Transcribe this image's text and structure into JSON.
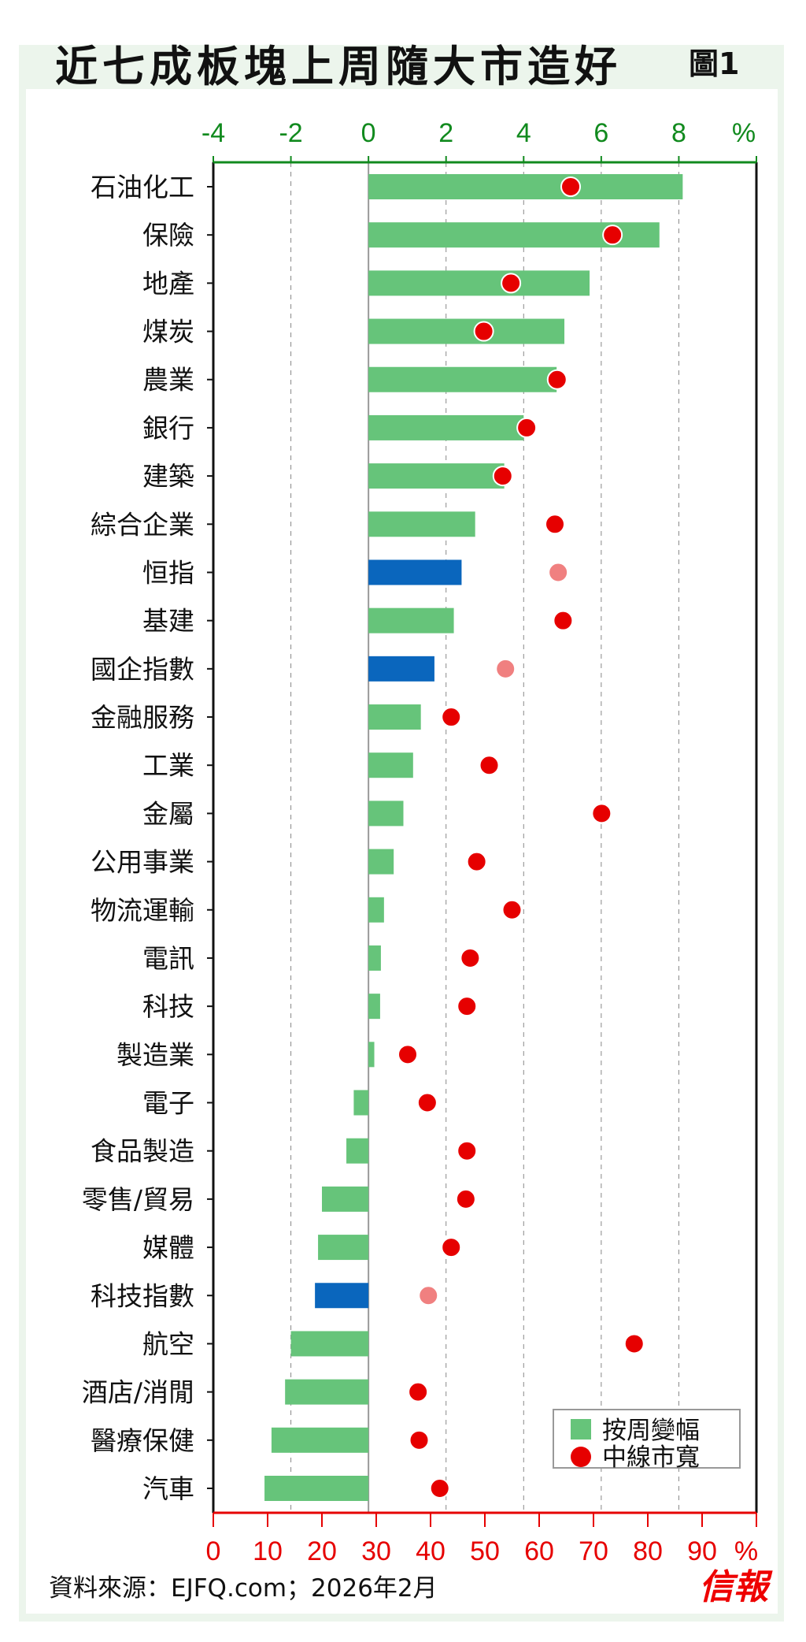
{
  "title": "近七成板塊上周隨大市造好",
  "figure_label": "圖1",
  "source": "資料來源：EJFQ.com；2026年2月",
  "logo": "信報",
  "colors": {
    "bar": "#66c47a",
    "index_bar": "#0a66bd",
    "dot": "#e60000",
    "index_dot": "#f08080",
    "top_axis": "#118a1e",
    "bottom_axis": "#e60000",
    "frame": "#ecf5ec"
  },
  "chart_data": {
    "type": "bar",
    "title": "近七成板塊上周隨大市造好",
    "top_axis": {
      "label": "%",
      "ticks": [
        "-4",
        "-2",
        "0",
        "2",
        "4",
        "6",
        "8"
      ],
      "range": [
        -4,
        10
      ]
    },
    "bottom_axis": {
      "label": "%",
      "ticks": [
        "0",
        "10",
        "20",
        "30",
        "40",
        "50",
        "60",
        "70",
        "80",
        "90"
      ],
      "range": [
        0,
        100
      ]
    },
    "legend": {
      "placement": "bottom-right",
      "entries": [
        "按周變幅",
        "中線市寬"
      ]
    },
    "categories": [
      "石油化工",
      "保險",
      "地產",
      "煤炭",
      "農業",
      "銀行",
      "建築",
      "綜合企業",
      "恒指",
      "基建",
      "國企指數",
      "金融服務",
      "工業",
      "金屬",
      "公用事業",
      "物流運輸",
      "電訊",
      "科技",
      "製造業",
      "電子",
      "食品製造",
      "零售/貿易",
      "媒體",
      "科技指數",
      "航空",
      "酒店/消閒",
      "醫療保健",
      "汽車"
    ],
    "is_index": [
      false,
      false,
      false,
      false,
      false,
      false,
      false,
      false,
      true,
      false,
      true,
      false,
      false,
      false,
      false,
      false,
      false,
      false,
      false,
      false,
      false,
      false,
      false,
      true,
      false,
      false,
      false,
      false
    ],
    "series": [
      {
        "name": "按周變幅",
        "axis": "top",
        "values": [
          8.1,
          7.5,
          5.7,
          5.05,
          4.85,
          4.0,
          3.5,
          2.75,
          2.4,
          2.2,
          1.7,
          1.35,
          1.15,
          0.9,
          0.65,
          0.4,
          0.32,
          0.3,
          0.15,
          -0.38,
          -0.57,
          -1.2,
          -1.3,
          -1.38,
          -2.0,
          -2.15,
          -2.5,
          -2.68
        ]
      },
      {
        "name": "中線市寬",
        "axis": "bottom",
        "values": [
          65.8,
          73.5,
          54.8,
          49.8,
          63.3,
          57.7,
          53.3,
          62.9,
          63.5,
          64.4,
          53.8,
          43.8,
          50.8,
          71.5,
          48.5,
          55.0,
          47.3,
          46.7,
          35.8,
          39.4,
          46.7,
          46.5,
          43.8,
          39.6,
          77.5,
          37.7,
          37.9,
          41.7
        ]
      }
    ]
  }
}
